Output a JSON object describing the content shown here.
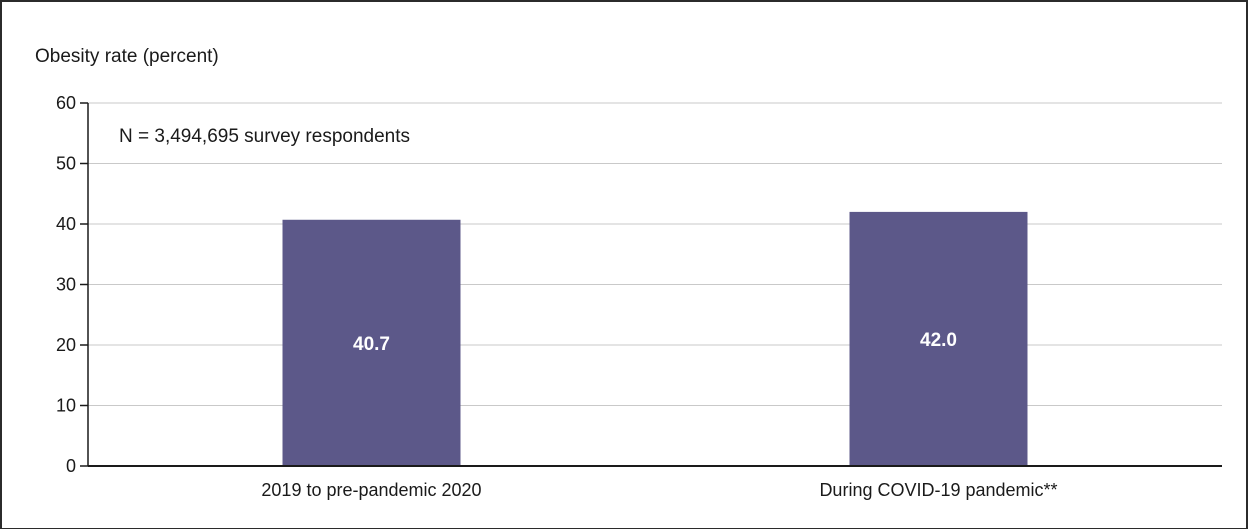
{
  "chart_data": {
    "type": "bar",
    "title": "",
    "ylabel": "Obesity rate (percent)",
    "xlabel": "",
    "ylim": [
      0,
      60
    ],
    "yticks": [
      0,
      10,
      20,
      30,
      40,
      50,
      60
    ],
    "grid": true,
    "annotation": "N = 3,494,695 survey respondents",
    "categories": [
      "2019 to pre-pandemic 2020",
      "During COVID-19 pandemic**"
    ],
    "values": [
      40.7,
      42.0
    ],
    "value_labels": [
      "40.7",
      "42.0"
    ],
    "bar_color": "#5c5889",
    "gridline_color": "#c9c9c9",
    "axis_color": "#1a1a1a"
  }
}
